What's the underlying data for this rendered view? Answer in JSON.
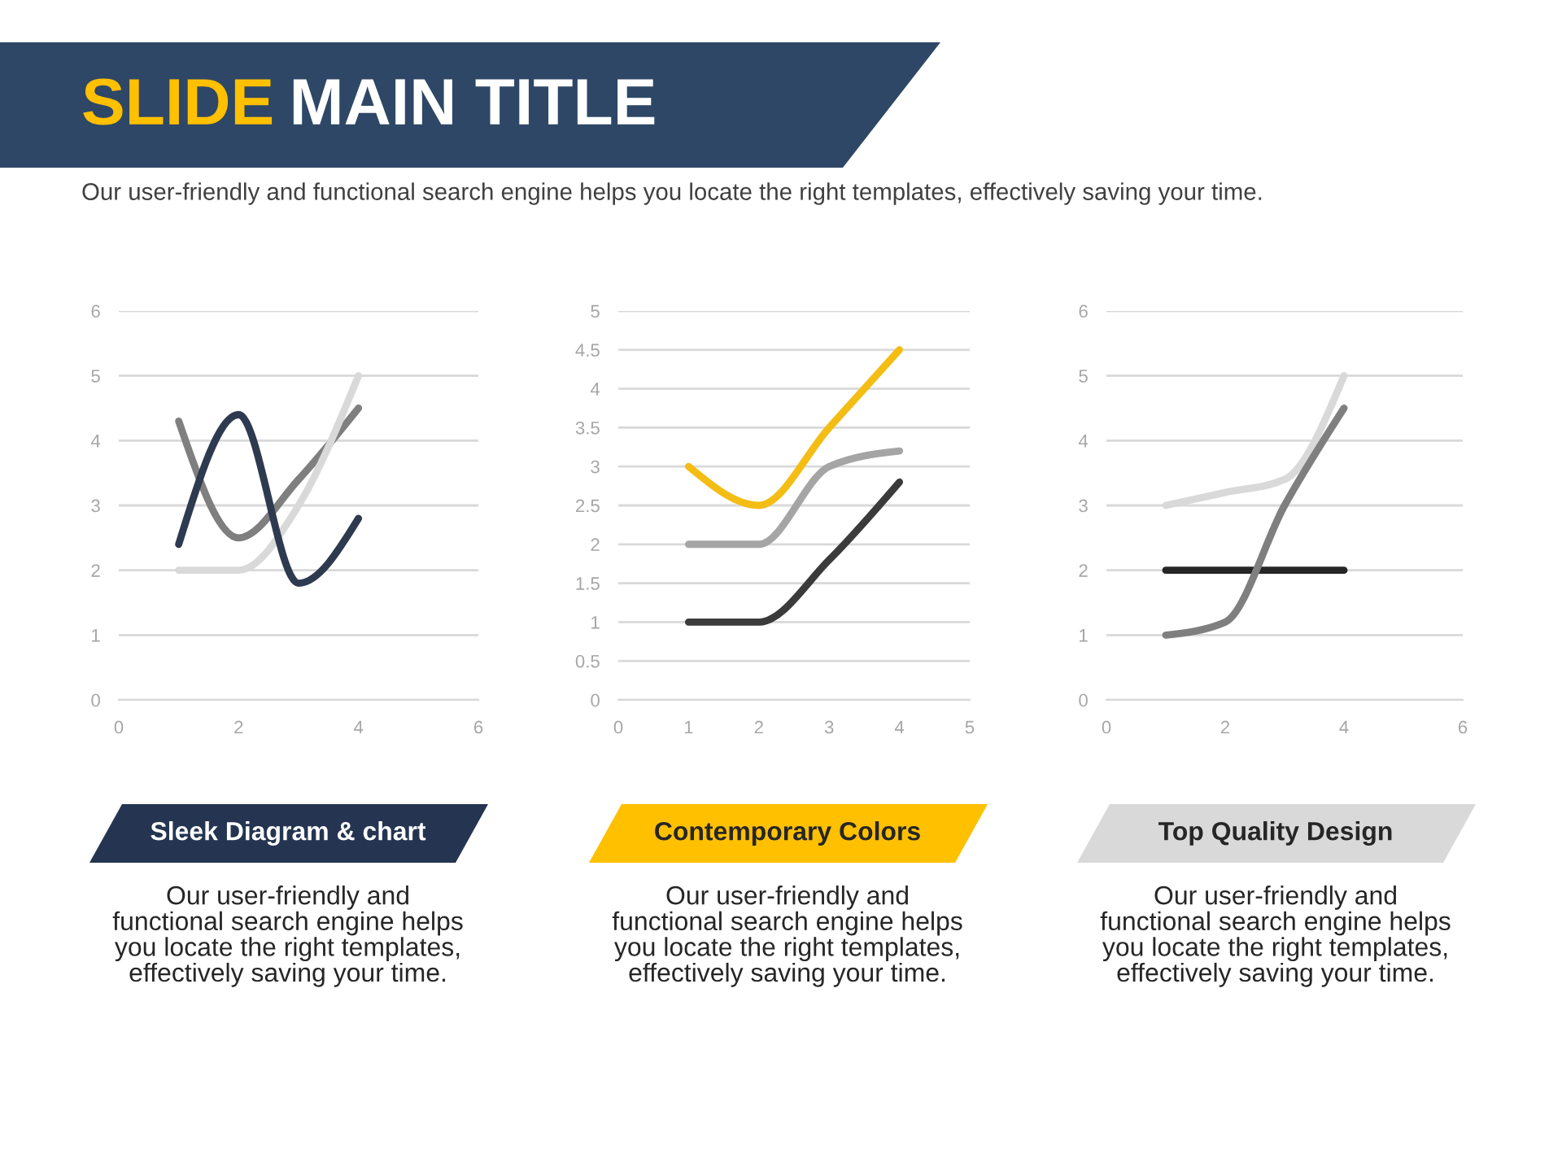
{
  "chart_data": [
    {
      "type": "other",
      "title": "SLIDE MAIN TITLE",
      "subtitle": "Our user-friendly and functional search engine helps you locate the right templates, effectively saving your time."
    },
    {
      "type": "line",
      "title": "Sleek Diagram & chart",
      "annotations": [
        "Our user-friendly and functional search engine helps you locate the right templates, effectively saving your time."
      ],
      "x": [
        1,
        2,
        3,
        4
      ],
      "series": [
        {
          "color": "#7f7f7f",
          "values": [
            4.3,
            2.5,
            3.4,
            4.5
          ]
        },
        {
          "color": "#d9d9d9",
          "values": [
            2,
            2,
            3,
            5
          ]
        },
        {
          "color": "#2e3a4f",
          "values": [
            2.4,
            4.4,
            1.8,
            2.8
          ]
        }
      ],
      "xlim": [
        0,
        6
      ],
      "xticks": [
        0,
        2,
        4,
        6
      ],
      "ylim": [
        0,
        6
      ],
      "yticks": [
        0,
        1,
        2,
        3,
        4,
        5,
        6
      ],
      "grid": "y"
    },
    {
      "type": "line",
      "title": "Contemporary Colors",
      "annotations": [
        "Our user-friendly and functional search engine helps you locate the right templates, effectively saving your time."
      ],
      "x": [
        1,
        2,
        3,
        4
      ],
      "series": [
        {
          "color": "#f4bd14",
          "values": [
            3,
            2.5,
            3.5,
            4.5
          ]
        },
        {
          "color": "#a5a5a5",
          "values": [
            2,
            2,
            3,
            3.2
          ]
        },
        {
          "color": "#3b3b3b",
          "values": [
            1,
            1,
            1.8,
            2.8
          ]
        }
      ],
      "xlim": [
        0,
        5
      ],
      "xticks": [
        0,
        1,
        2,
        3,
        4,
        5
      ],
      "ylim": [
        0,
        5
      ],
      "yticks": [
        0,
        0.5,
        1,
        1.5,
        2,
        2.5,
        3,
        3.5,
        4,
        4.5,
        5
      ],
      "grid": "y"
    },
    {
      "type": "line",
      "title": "Top Quality Design",
      "annotations": [
        "Our user-friendly and functional search engine helps you locate the right templates, effectively saving your time."
      ],
      "x": [
        1,
        2,
        3,
        4
      ],
      "series": [
        {
          "color": "#d9d9d9",
          "values": [
            3,
            3.2,
            3.4,
            5
          ]
        },
        {
          "color": "#262626",
          "values": [
            2,
            2,
            2,
            2
          ]
        },
        {
          "color": "#7f7f7f",
          "values": [
            1,
            1.2,
            3,
            4.5
          ]
        }
      ],
      "xlim": [
        0,
        6
      ],
      "xticks": [
        0,
        2,
        4,
        6
      ],
      "ylim": [
        0,
        6
      ],
      "yticks": [
        0,
        1,
        2,
        3,
        4,
        5,
        6
      ],
      "grid": "y"
    }
  ]
}
